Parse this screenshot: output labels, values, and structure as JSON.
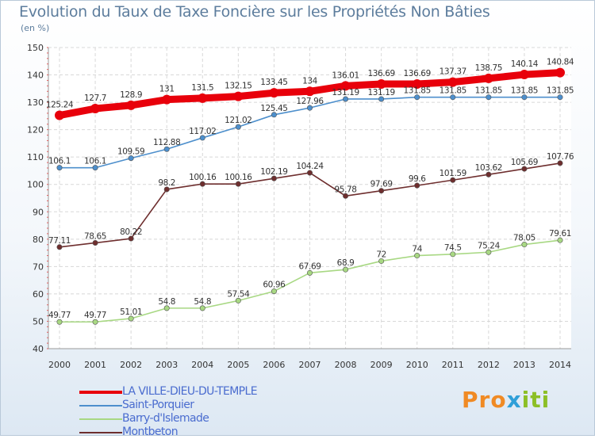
{
  "title": "Evolution du Taux de Taxe Foncière sur les Propriétés Non Bâties",
  "unit": "(en %)",
  "logo": {
    "part1": "Pro",
    "part2": "x",
    "part3": "iti"
  },
  "chart_data": {
    "type": "line",
    "title": "Evolution du Taux de Taxe Foncière sur les Propriétés Non Bâties",
    "ylabel": "(en %)",
    "xlabel": "",
    "ylim": [
      40,
      150
    ],
    "yticks": [
      40,
      50,
      60,
      70,
      80,
      90,
      100,
      110,
      120,
      130,
      140,
      150
    ],
    "grid": true,
    "x": [
      "2000",
      "2001",
      "2002",
      "2003",
      "2004",
      "2005",
      "2006",
      "2007",
      "2008",
      "2009",
      "2010",
      "2011",
      "2012",
      "2013",
      "2014"
    ],
    "series": [
      {
        "name": "LA VILLE-DIEU-DU-TEMPLE",
        "color": "#e8000b",
        "bold": true,
        "values": [
          125.24,
          127.7,
          128.9,
          131,
          131.5,
          132.15,
          133.45,
          134,
          136.01,
          136.69,
          136.69,
          137.37,
          138.75,
          140.14,
          140.84
        ],
        "labels": [
          "125.24",
          "127.7",
          "128.9",
          "131",
          "131.5",
          "132.15",
          "133.45",
          "134",
          "136.01",
          "136.69",
          "136.69",
          "137.37",
          "138.75",
          "140.14",
          "140.84"
        ]
      },
      {
        "name": "Saint-Porquier",
        "color": "#4d8fcc",
        "bold": false,
        "values": [
          106.1,
          106.1,
          109.59,
          112.88,
          117.02,
          121.02,
          125.45,
          127.96,
          131.19,
          131.19,
          131.85,
          131.85,
          131.85,
          131.85,
          131.85
        ],
        "labels": [
          "106.1",
          "106.1",
          "109.59",
          "112.88",
          "117.02",
          "121.02",
          "125.45",
          "127.96",
          "131.19",
          "131.19",
          "131.85",
          "131.85",
          "131.85",
          "131.85",
          "131.85"
        ]
      },
      {
        "name": "Barry-d'Islemade",
        "color": "#a8d883",
        "bold": false,
        "values": [
          49.77,
          49.77,
          51.01,
          54.8,
          54.8,
          57.54,
          60.96,
          67.69,
          68.9,
          72,
          74,
          74.5,
          75.24,
          78.05,
          79.61
        ],
        "labels": [
          "49.77",
          "49.77",
          "51.01",
          "54.8",
          "54.8",
          "57.54",
          "60.96",
          "67.69",
          "68.9",
          "72",
          "74",
          "74.5",
          "75.24",
          "78.05",
          "79.61"
        ]
      },
      {
        "name": "Montbeton",
        "color": "#6e2e2e",
        "bold": false,
        "values": [
          77.11,
          78.65,
          80.22,
          98.2,
          100.16,
          100.16,
          102.19,
          104.24,
          95.78,
          97.69,
          99.6,
          101.59,
          103.62,
          105.69,
          107.76
        ],
        "labels": [
          "77.11",
          "78.65",
          "80.22",
          "98.2",
          "100.16",
          "100.16",
          "102.19",
          "104.24",
          "95.78",
          "97.69",
          "99.6",
          "101.59",
          "103.62",
          "105.69",
          "107.76"
        ]
      }
    ],
    "legend_position": "bottom-left"
  }
}
